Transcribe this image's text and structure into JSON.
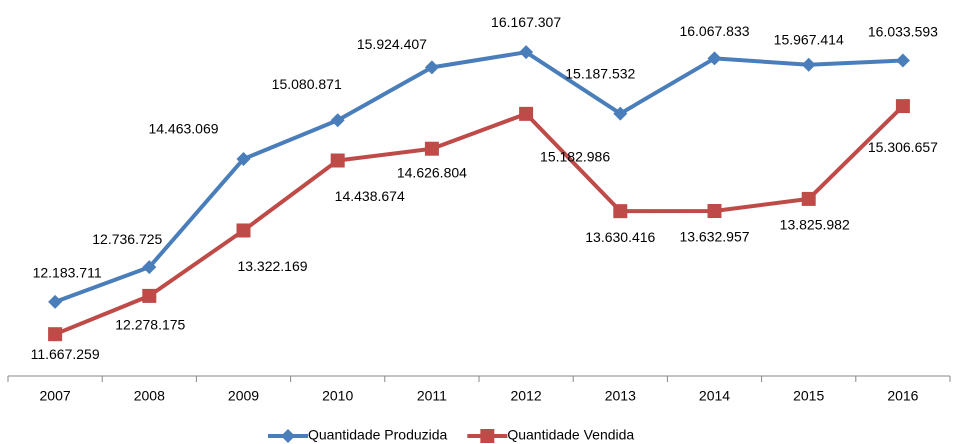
{
  "chart_data": {
    "type": "line",
    "categories": [
      "2007",
      "2008",
      "2009",
      "2010",
      "2011",
      "2012",
      "2013",
      "2014",
      "2015",
      "2016"
    ],
    "series": [
      {
        "name": "Quantidade Produzida",
        "color": "#4a7ebb",
        "marker": "diamond",
        "values": [
          12183711,
          12736725,
          14463069,
          15080871,
          15924407,
          16167307,
          15187532,
          16067833,
          15967414,
          16033593
        ],
        "value_labels": [
          "12.183.711",
          "12.736.725",
          "14.463.069",
          "15.080.871",
          "15.924.407",
          "16.167.307",
          "15.187.532",
          "16.067.833",
          "15.967.414",
          "16.033.593"
        ]
      },
      {
        "name": "Quantidade Vendida",
        "color": "#be4b48",
        "marker": "square",
        "values": [
          11667259,
          12278175,
          13322169,
          14438674,
          14626804,
          15182986,
          13630416,
          13632957,
          13825982,
          15306657
        ],
        "value_labels": [
          "11.667.259",
          "12.278.175",
          "13.322.169",
          "14.438.674",
          "14.626.804",
          "15.182.986",
          "13.630.416",
          "13.632.957",
          "13.825.982",
          "15.306.657"
        ]
      }
    ],
    "ylim": [
      11000000,
      17000000
    ],
    "legend": "bottom"
  }
}
